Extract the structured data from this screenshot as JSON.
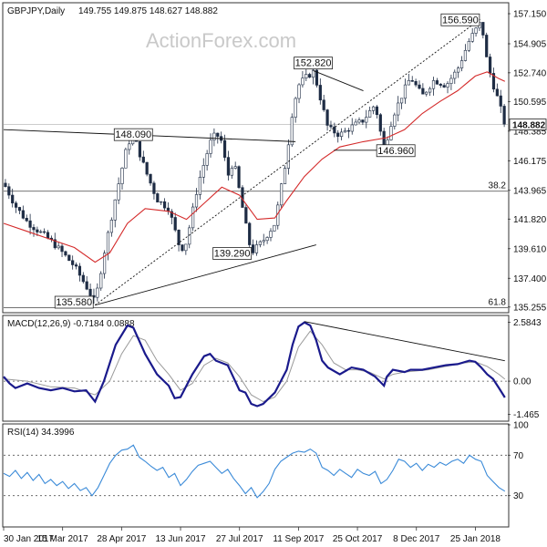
{
  "chart_data": [
    {
      "type": "candlestick",
      "title": "GBPJPY,Daily",
      "ohlc": "149.755 149.875 148.627 148.882",
      "watermark": "ActionForex.com",
      "current_price_label": "148.882",
      "current_price": 148.882,
      "y_ticks": [
        "157.150",
        "154.905",
        "152.740",
        "150.595",
        "148.385",
        "146.175",
        "143.965",
        "141.820",
        "139.610",
        "137.400",
        "135.255"
      ],
      "y_tick_values": [
        157.15,
        154.905,
        152.74,
        150.595,
        148.385,
        146.175,
        143.965,
        141.82,
        139.61,
        137.4,
        135.255
      ],
      "ylim": [
        134.9,
        157.9
      ],
      "fib_levels": [
        {
          "label": "38.2",
          "value": 143.9
        },
        {
          "label": "61.8",
          "value": 135.2
        }
      ],
      "annotations": [
        {
          "label": "135.580",
          "x": 15.5,
          "value": 135.58
        },
        {
          "label": "148.090",
          "x": 22,
          "value": 148.09
        },
        {
          "label": "152.820",
          "x": 52.5,
          "value": 152.82
        },
        {
          "label": "139.290",
          "x": 42,
          "value": 139.29
        },
        {
          "label": "146.960",
          "x": 64.5,
          "value": 146.96
        },
        {
          "label": "156.590",
          "x": 81,
          "value": 156.59
        }
      ],
      "price_path": [
        [
          0,
          144.5
        ],
        [
          2,
          142.8
        ],
        [
          4,
          141.6
        ],
        [
          6,
          140.9
        ],
        [
          8,
          140.2
        ],
        [
          10,
          139.3
        ],
        [
          12,
          138.3
        ],
        [
          14,
          136.8
        ],
        [
          15.5,
          135.58
        ],
        [
          17,
          139.2
        ],
        [
          19,
          143.5
        ],
        [
          21,
          147.4
        ],
        [
          22,
          148.09
        ],
        [
          24,
          145.5
        ],
        [
          26,
          143.3
        ],
        [
          28,
          142.6
        ],
        [
          30,
          139.5
        ],
        [
          31,
          140.1
        ],
        [
          33,
          144.5
        ],
        [
          35,
          147.5
        ],
        [
          36,
          148.2
        ],
        [
          37,
          147.6
        ],
        [
          38,
          145.0
        ],
        [
          39,
          146.2
        ],
        [
          41,
          141.5
        ],
        [
          42,
          139.29
        ],
        [
          44,
          140.2
        ],
        [
          46,
          141.5
        ],
        [
          48,
          146.5
        ],
        [
          49,
          150.0
        ],
        [
          50,
          151.8
        ],
        [
          51,
          152.3
        ],
        [
          52.5,
          152.82
        ],
        [
          53,
          152.1
        ],
        [
          55,
          148.6
        ],
        [
          57,
          148.1
        ],
        [
          59,
          148.7
        ],
        [
          61,
          149.2
        ],
        [
          63,
          150.4
        ],
        [
          64.5,
          146.96
        ],
        [
          66,
          149.5
        ],
        [
          68,
          151.5
        ],
        [
          69,
          152.4
        ],
        [
          71,
          151.0
        ],
        [
          73,
          152.2
        ],
        [
          75,
          151.8
        ],
        [
          77,
          153.0
        ],
        [
          79,
          155.2
        ],
        [
          81,
          156.59
        ],
        [
          82,
          153.5
        ],
        [
          83,
          151.9
        ],
        [
          84,
          150.5
        ],
        [
          85,
          148.882
        ]
      ],
      "sma_path": [
        [
          0,
          141.5
        ],
        [
          4,
          140.9
        ],
        [
          8,
          140.3
        ],
        [
          12,
          139.7
        ],
        [
          15.5,
          138.6
        ],
        [
          18,
          139.3
        ],
        [
          21,
          141.5
        ],
        [
          24,
          142.6
        ],
        [
          28,
          142.4
        ],
        [
          31,
          141.8
        ],
        [
          34,
          143.0
        ],
        [
          37,
          144.2
        ],
        [
          40,
          143.6
        ],
        [
          43,
          141.8
        ],
        [
          46,
          141.9
        ],
        [
          48,
          143.2
        ],
        [
          51,
          145.0
        ],
        [
          54,
          146.3
        ],
        [
          57,
          147.2
        ],
        [
          61,
          147.6
        ],
        [
          65,
          147.9
        ],
        [
          68,
          148.5
        ],
        [
          71,
          149.7
        ],
        [
          74,
          150.6
        ],
        [
          77,
          151.4
        ],
        [
          80,
          152.5
        ],
        [
          82,
          152.8
        ],
        [
          84,
          152.3
        ],
        [
          85,
          152.1
        ]
      ],
      "x_ticks": [
        {
          "label": "30 Jan 2017",
          "x": 0
        },
        {
          "label": "15 Mar 2017",
          "x": 10
        },
        {
          "label": "28 Apr 2017",
          "x": 20
        },
        {
          "label": "13 Jun 2017",
          "x": 30
        },
        {
          "label": "27 Jul 2017",
          "x": 40
        },
        {
          "label": "11 Sep 2017",
          "x": 50
        },
        {
          "label": "25 Oct 2017",
          "x": 60
        },
        {
          "label": "8 Dec 2017",
          "x": 70
        },
        {
          "label": "25 Jan 2018",
          "x": 80
        }
      ],
      "xlim": [
        0,
        85.5
      ],
      "grid": false
    },
    {
      "type": "line",
      "title": "MACD(12,26,9) -0.7184 0.0888",
      "y_ticks": [
        "2.5843",
        "0.00",
        "-1.465"
      ],
      "y_tick_values": [
        2.5843,
        0.0,
        -1.465
      ],
      "ylim": [
        -1.72,
        2.85
      ],
      "macd": [
        [
          0,
          0.2
        ],
        [
          1,
          -0.1
        ],
        [
          2,
          -0.3
        ],
        [
          4,
          -0.1
        ],
        [
          6,
          -0.3
        ],
        [
          8,
          -0.4
        ],
        [
          10,
          -0.3
        ],
        [
          12,
          -0.45
        ],
        [
          14,
          -0.4
        ],
        [
          15.5,
          -0.9
        ],
        [
          17,
          0.0
        ],
        [
          19,
          1.6
        ],
        [
          21,
          2.45
        ],
        [
          22,
          2.35
        ],
        [
          24,
          1.2
        ],
        [
          26,
          0.3
        ],
        [
          28,
          -0.2
        ],
        [
          29,
          -0.75
        ],
        [
          30,
          -0.7
        ],
        [
          32,
          0.3
        ],
        [
          34,
          1.1
        ],
        [
          35,
          1.2
        ],
        [
          36,
          0.9
        ],
        [
          38,
          0.7
        ],
        [
          40,
          -0.4
        ],
        [
          41,
          -0.5
        ],
        [
          42,
          -1.0
        ],
        [
          43,
          -1.1
        ],
        [
          44,
          -1.0
        ],
        [
          46,
          -0.5
        ],
        [
          48,
          0.5
        ],
        [
          49,
          1.6
        ],
        [
          50,
          2.4
        ],
        [
          51,
          2.58
        ],
        [
          52,
          2.45
        ],
        [
          53,
          1.8
        ],
        [
          54,
          0.9
        ],
        [
          55,
          0.6
        ],
        [
          57,
          0.3
        ],
        [
          59,
          0.6
        ],
        [
          61,
          0.5
        ],
        [
          63,
          0.2
        ],
        [
          64.5,
          -0.2
        ],
        [
          65,
          0.2
        ],
        [
          66,
          0.5
        ],
        [
          68,
          0.4
        ],
        [
          69,
          0.5
        ],
        [
          71,
          0.5
        ],
        [
          73,
          0.6
        ],
        [
          75,
          0.7
        ],
        [
          77,
          0.75
        ],
        [
          79,
          0.9
        ],
        [
          80,
          0.85
        ],
        [
          81,
          0.6
        ],
        [
          82,
          0.3
        ],
        [
          83,
          0.1
        ],
        [
          84,
          -0.3
        ],
        [
          85,
          -0.7184
        ]
      ],
      "signal": [
        [
          0,
          0.1
        ],
        [
          4,
          0.0
        ],
        [
          8,
          -0.25
        ],
        [
          12,
          -0.3
        ],
        [
          15.5,
          -0.6
        ],
        [
          18,
          0.0
        ],
        [
          20,
          1.2
        ],
        [
          22,
          2.0
        ],
        [
          24,
          1.8
        ],
        [
          26,
          0.9
        ],
        [
          28,
          0.3
        ],
        [
          30,
          -0.4
        ],
        [
          32,
          -0.1
        ],
        [
          34,
          0.7
        ],
        [
          36,
          1.0
        ],
        [
          38,
          0.8
        ],
        [
          40,
          0.2
        ],
        [
          42,
          -0.6
        ],
        [
          44,
          -0.9
        ],
        [
          46,
          -0.7
        ],
        [
          48,
          0.0
        ],
        [
          50,
          1.5
        ],
        [
          52,
          2.2
        ],
        [
          54,
          1.6
        ],
        [
          56,
          0.8
        ],
        [
          58,
          0.5
        ],
        [
          60,
          0.5
        ],
        [
          62,
          0.4
        ],
        [
          64.5,
          0.1
        ],
        [
          66,
          0.3
        ],
        [
          68,
          0.4
        ],
        [
          70,
          0.45
        ],
        [
          72,
          0.5
        ],
        [
          74,
          0.6
        ],
        [
          76,
          0.7
        ],
        [
          78,
          0.8
        ],
        [
          80,
          0.85
        ],
        [
          82,
          0.65
        ],
        [
          84,
          0.3
        ],
        [
          85,
          0.0888
        ]
      ]
    },
    {
      "type": "line",
      "title": "RSI(14) 34.3996",
      "y_ticks": [
        "100",
        "70",
        "30"
      ],
      "y_tick_values": [
        100,
        70,
        30
      ],
      "ylim": [
        0,
        100
      ],
      "rsi": [
        [
          0,
          52
        ],
        [
          1,
          49
        ],
        [
          2,
          55
        ],
        [
          3,
          47
        ],
        [
          4,
          53
        ],
        [
          5,
          45
        ],
        [
          6,
          51
        ],
        [
          7,
          42
        ],
        [
          8,
          46
        ],
        [
          9,
          40
        ],
        [
          10,
          44
        ],
        [
          11,
          37
        ],
        [
          12,
          42
        ],
        [
          13,
          35
        ],
        [
          14,
          38
        ],
        [
          15,
          30
        ],
        [
          16,
          38
        ],
        [
          17,
          50
        ],
        [
          18,
          62
        ],
        [
          19,
          70
        ],
        [
          20,
          75
        ],
        [
          21,
          76
        ],
        [
          22,
          80
        ],
        [
          23,
          68
        ],
        [
          24,
          64
        ],
        [
          25,
          59
        ],
        [
          26,
          55
        ],
        [
          27,
          58
        ],
        [
          28,
          48
        ],
        [
          29,
          52
        ],
        [
          30,
          40
        ],
        [
          31,
          46
        ],
        [
          32,
          54
        ],
        [
          33,
          60
        ],
        [
          34,
          62
        ],
        [
          35,
          64
        ],
        [
          36,
          58
        ],
        [
          37,
          52
        ],
        [
          38,
          56
        ],
        [
          39,
          47
        ],
        [
          40,
          40
        ],
        [
          41,
          32
        ],
        [
          42,
          38
        ],
        [
          43,
          28
        ],
        [
          44,
          34
        ],
        [
          45,
          42
        ],
        [
          46,
          56
        ],
        [
          47,
          64
        ],
        [
          48,
          68
        ],
        [
          49,
          72
        ],
        [
          50,
          74
        ],
        [
          51,
          73
        ],
        [
          52,
          76
        ],
        [
          53,
          72
        ],
        [
          54,
          58
        ],
        [
          55,
          55
        ],
        [
          56,
          50
        ],
        [
          57,
          56
        ],
        [
          58,
          52
        ],
        [
          59,
          48
        ],
        [
          60,
          56
        ],
        [
          61,
          52
        ],
        [
          62,
          50
        ],
        [
          63,
          54
        ],
        [
          64,
          42
        ],
        [
          65,
          46
        ],
        [
          66,
          55
        ],
        [
          67,
          66
        ],
        [
          68,
          64
        ],
        [
          69,
          58
        ],
        [
          70,
          62
        ],
        [
          71,
          55
        ],
        [
          72,
          61
        ],
        [
          73,
          58
        ],
        [
          74,
          63
        ],
        [
          75,
          60
        ],
        [
          76,
          64
        ],
        [
          77,
          66
        ],
        [
          78,
          62
        ],
        [
          79,
          70
        ],
        [
          80,
          66
        ],
        [
          81,
          64
        ],
        [
          82,
          50
        ],
        [
          83,
          44
        ],
        [
          84,
          38
        ],
        [
          85,
          34.3996
        ]
      ]
    }
  ],
  "colors": {
    "candle": "#1e2c44",
    "sma": "#d42a2a",
    "trendline": "#111111",
    "macd": "#1a1a8c",
    "signal": "#9a9a9a",
    "rsi": "#3a8ad8",
    "dotted": "#555555"
  }
}
